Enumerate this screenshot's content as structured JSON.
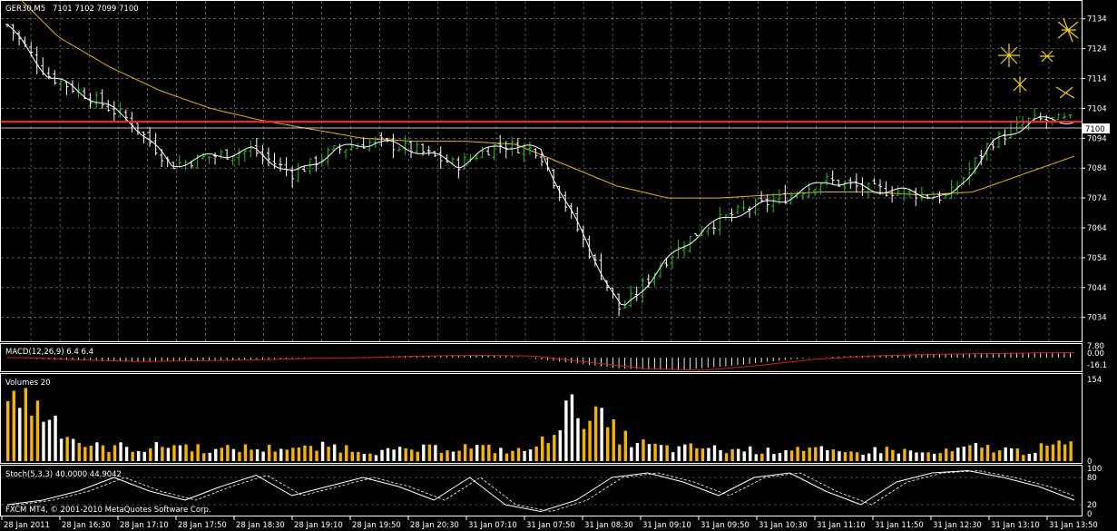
{
  "header": {
    "symbol": "GER30,M5",
    "ohlc": "7101 7102 7099 7100"
  },
  "current_price": "7100",
  "colors": {
    "bull": "#22c322",
    "bear": "#ffffff",
    "price_line": "#ff2020",
    "ma_slow": "#e0b020",
    "ma_fast": "#ffffff",
    "volume_up": "#f5b400",
    "volume_down": "#ffffff",
    "macd": "#d02020",
    "arrow": "#f0d020"
  },
  "panels": {
    "macd_label": "MACD(12,26,9) 6.4 6.4",
    "volumes_label": "Volumes 20",
    "stoch_label": "Stoch(5,3,3) 40.0000 44.9042",
    "copyright": "FXCM MT4, © 2001-2010 MetaQuotes Software Corp."
  },
  "chart_data": {
    "type": "candlestick",
    "price_axis": {
      "ticks": [
        "7134",
        "7124",
        "7114",
        "7104",
        "7094",
        "7084",
        "7074",
        "7064",
        "7054",
        "7044",
        "7034"
      ],
      "range": [
        7026,
        7140
      ]
    },
    "macd_axis": {
      "ticks": [
        "7.80",
        "0.00",
        "-16.1"
      ]
    },
    "volume_axis": {
      "ticks": [
        "154",
        "0"
      ],
      "range": [
        0,
        154
      ]
    },
    "stoch_axis": {
      "ticks": [
        "100",
        "80",
        "20",
        "0"
      ],
      "range": [
        0,
        100
      ]
    },
    "time_labels": [
      "28 Jan 2011",
      "28 Jan 16:30",
      "28 Jan 17:10",
      "28 Jan 17:50",
      "28 Jan 18:30",
      "28 Jan 19:10",
      "28 Jan 19:50",
      "28 Jan 20:30",
      "31 Jan 07:10",
      "31 Jan 07:50",
      "31 Jan 08:30",
      "31 Jan 09:10",
      "31 Jan 09:50",
      "31 Jan 10:30",
      "31 Jan 11:10",
      "31 Jan 11:50",
      "31 Jan 12:30",
      "31 Jan 13:10",
      "31 Jan 13:50"
    ],
    "close_anchors": [
      7132,
      7115,
      7108,
      7100,
      7085,
      7088,
      7090,
      7082,
      7090,
      7093,
      7090,
      7085,
      7092,
      7090,
      7062,
      7036,
      7052,
      7064,
      7070,
      7074,
      7080,
      7077,
      7076,
      7074,
      7092,
      7100,
      7100
    ],
    "ma_slow_anchors": [
      7145,
      7128,
      7118,
      7110,
      7104,
      7100,
      7097,
      7094,
      7093,
      7093,
      7092,
      7085,
      7078,
      7074,
      7074,
      7075,
      7076,
      7076,
      7075,
      7076,
      7082,
      7088
    ],
    "stoch_anchors": [
      20,
      30,
      50,
      80,
      50,
      30,
      60,
      85,
      40,
      60,
      80,
      60,
      30,
      80,
      20,
      5,
      30,
      80,
      90,
      70,
      40,
      80,
      90,
      50,
      20,
      70,
      90,
      95,
      80,
      60,
      30
    ],
    "macd_anchors": [
      0,
      -3,
      -5,
      -4,
      -3,
      -1,
      0,
      2,
      3,
      2,
      -6,
      -14,
      -16,
      -10,
      -2,
      2,
      4,
      5,
      6,
      6.4
    ],
    "volume_profile": [
      150,
      120,
      90,
      40,
      28,
      30,
      25,
      35,
      30,
      22,
      28,
      25,
      30,
      25,
      32,
      25,
      20,
      22,
      25,
      28,
      30,
      25,
      20,
      30,
      100,
      110,
      70,
      40,
      30,
      25,
      30,
      22,
      25,
      20,
      30,
      25,
      15,
      20,
      25,
      20,
      15,
      22,
      30,
      25,
      20,
      30,
      35
    ]
  }
}
